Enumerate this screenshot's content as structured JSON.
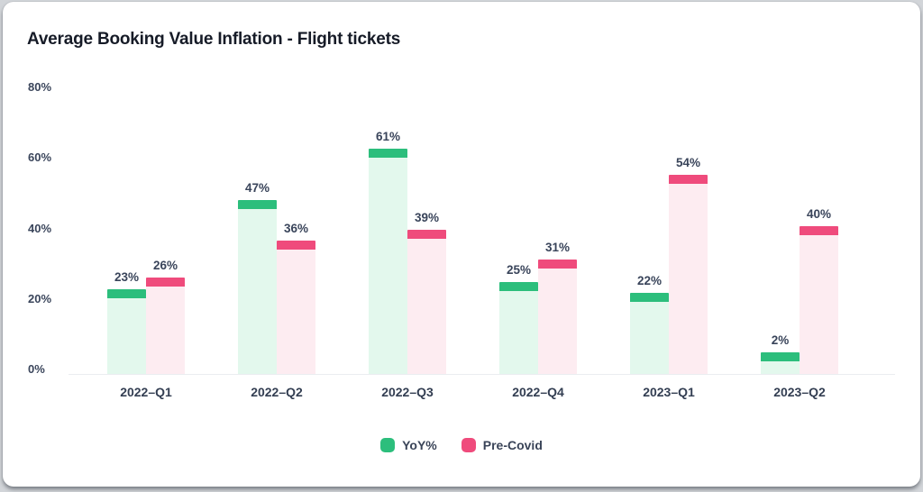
{
  "chart_data": {
    "type": "bar",
    "title": "Average Booking Value Inflation - Flight tickets",
    "categories": [
      "2022–Q1",
      "2022–Q2",
      "2022–Q3",
      "2022–Q4",
      "2023–Q1",
      "2023–Q2"
    ],
    "series": [
      {
        "name": "YoY%",
        "color": "#2cbe7c",
        "fill_color": "#e3f8ed",
        "values": [
          23,
          47,
          61,
          25,
          22,
          2
        ]
      },
      {
        "name": "Pre-Covid",
        "color": "#ef4b7c",
        "fill_color": "#fdecf1",
        "values": [
          26,
          36,
          39,
          31,
          54,
          40
        ]
      }
    ],
    "value_suffix": "%",
    "data_labels": [
      "23%",
      "47%",
      "61%",
      "25%",
      "22%",
      "2%",
      "26%",
      "36%",
      "39%",
      "31%",
      "54%",
      "40%"
    ],
    "ylabel": "",
    "xlabel": "",
    "ylim": [
      0,
      80
    ],
    "yticks": [
      {
        "label": "0%",
        "value": 0
      },
      {
        "label": "20%",
        "value": 20
      },
      {
        "label": "40%",
        "value": 40
      },
      {
        "label": "60%",
        "value": 60
      },
      {
        "label": "80%",
        "value": 80
      }
    ],
    "grid": false,
    "legend_position": "bottom",
    "text_color": "#39445a",
    "axis_line_color": "#ebedf0",
    "background_color": "#ffffff"
  }
}
